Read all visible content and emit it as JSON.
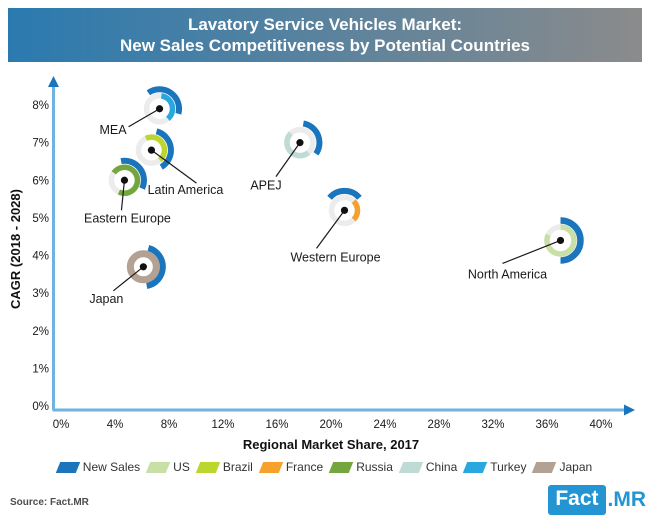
{
  "header": {
    "title_line1": "Lavatory Service Vehicles Market:",
    "title_line2": "New Sales Competitiveness by Potential Countries"
  },
  "footer": {
    "source": "Source: Fact.MR",
    "logo_fact": "Fact",
    "logo_mr": ".MR"
  },
  "colors": {
    "new_sales": "#1B75BC",
    "us": "#C8DFA6",
    "brazil": "#BDD62E",
    "france": "#F6A12C",
    "russia": "#74A63E",
    "china": "#BFDBD6",
    "turkey": "#29A8E0",
    "japan": "#B3A294",
    "ring_base": "#ECECEC",
    "axis_line": "#6FB3E0",
    "axis_arrow": "#1B75BC",
    "text": "#1A1A1A",
    "header_blue": "#2A7AB0",
    "header_gray": "#8B8B8B",
    "logo_blue": "#2495D3"
  },
  "legend": [
    {
      "label": "New Sales",
      "key": "new_sales"
    },
    {
      "label": "US",
      "key": "us"
    },
    {
      "label": "Brazil",
      "key": "brazil"
    },
    {
      "label": "France",
      "key": "france"
    },
    {
      "label": "Russia",
      "key": "russia"
    },
    {
      "label": "China",
      "key": "china"
    },
    {
      "label": "Turkey",
      "key": "turkey"
    },
    {
      "label": "Japan",
      "key": "japan"
    }
  ],
  "chart_data": {
    "type": "scatter",
    "title": "Lavatory Service Vehicles Market: New Sales Competitiveness by Potential Countries",
    "xlabel": "Regional Market Share, 2017",
    "ylabel": "CAGR (2018 - 2028)",
    "xlim": [
      0,
      40
    ],
    "ylim": [
      0,
      8
    ],
    "x_ticks": [
      0,
      4,
      8,
      12,
      16,
      20,
      24,
      28,
      32,
      36,
      40
    ],
    "y_ticks": [
      0,
      1,
      2,
      3,
      4,
      5,
      6,
      7,
      8
    ],
    "tick_suffix": "%",
    "grid": false,
    "legend_position": "bottom",
    "points": [
      {
        "name": "MEA",
        "x": 7.3,
        "y": 7.9,
        "country": "Turkey",
        "country_key": "turkey",
        "inner_arc": [
          8,
          140
        ],
        "outer_arc": [
          -35,
          105
        ],
        "anchor": "end",
        "label_offset": [
          -33,
          25
        ],
        "line_end": [
          -31,
          18
        ]
      },
      {
        "name": "Latin America",
        "x": 6.7,
        "y": 6.8,
        "country": "Brazil",
        "country_key": "brazil",
        "inner_arc": [
          -25,
          140
        ],
        "outer_arc": [
          15,
          150
        ],
        "anchor": "middle",
        "label_offset": [
          34,
          44
        ],
        "line_end": [
          45,
          33
        ]
      },
      {
        "name": "Eastern Europe",
        "x": 4.7,
        "y": 6.0,
        "country": "Russia",
        "country_key": "russia",
        "inner_arc": [
          -55,
          205
        ],
        "outer_arc": [
          -10,
          115
        ],
        "anchor": "middle",
        "label_offset": [
          3,
          42
        ],
        "line_end": [
          -3,
          30
        ]
      },
      {
        "name": "APEJ",
        "x": 17.7,
        "y": 7.0,
        "country": "China",
        "country_key": "china",
        "inner_arc": [
          140,
          315
        ],
        "outer_arc": [
          10,
          125
        ],
        "anchor": "middle",
        "label_offset": [
          -34,
          47
        ],
        "line_end": [
          -24,
          34
        ]
      },
      {
        "name": "Western Europe",
        "x": 21.0,
        "y": 5.2,
        "country": "France",
        "country_key": "france",
        "inner_arc": [
          45,
          135
        ],
        "outer_arc": [
          -50,
          50
        ],
        "anchor": "middle",
        "label_offset": [
          -9,
          51
        ],
        "line_end": [
          -28,
          38
        ]
      },
      {
        "name": "Japan",
        "x": 6.1,
        "y": 3.7,
        "country": "Japan",
        "country_key": "japan",
        "inner_arc": [
          0,
          360
        ],
        "outer_arc": [
          15,
          170
        ],
        "ring_w": 7,
        "anchor": "middle",
        "label_offset": [
          -37,
          36
        ],
        "line_end": [
          -30,
          24
        ]
      },
      {
        "name": "North America",
        "x": 37.0,
        "y": 4.4,
        "country": "US",
        "country_key": "us",
        "inner_arc": [
          0,
          295
        ],
        "outer_arc": [
          0,
          180
        ],
        "ring_r": 13.5,
        "arc_r": 20,
        "arc_w": 6.5,
        "anchor": "middle",
        "label_offset": [
          -53,
          38
        ],
        "line_end": [
          -58,
          23
        ]
      }
    ]
  }
}
